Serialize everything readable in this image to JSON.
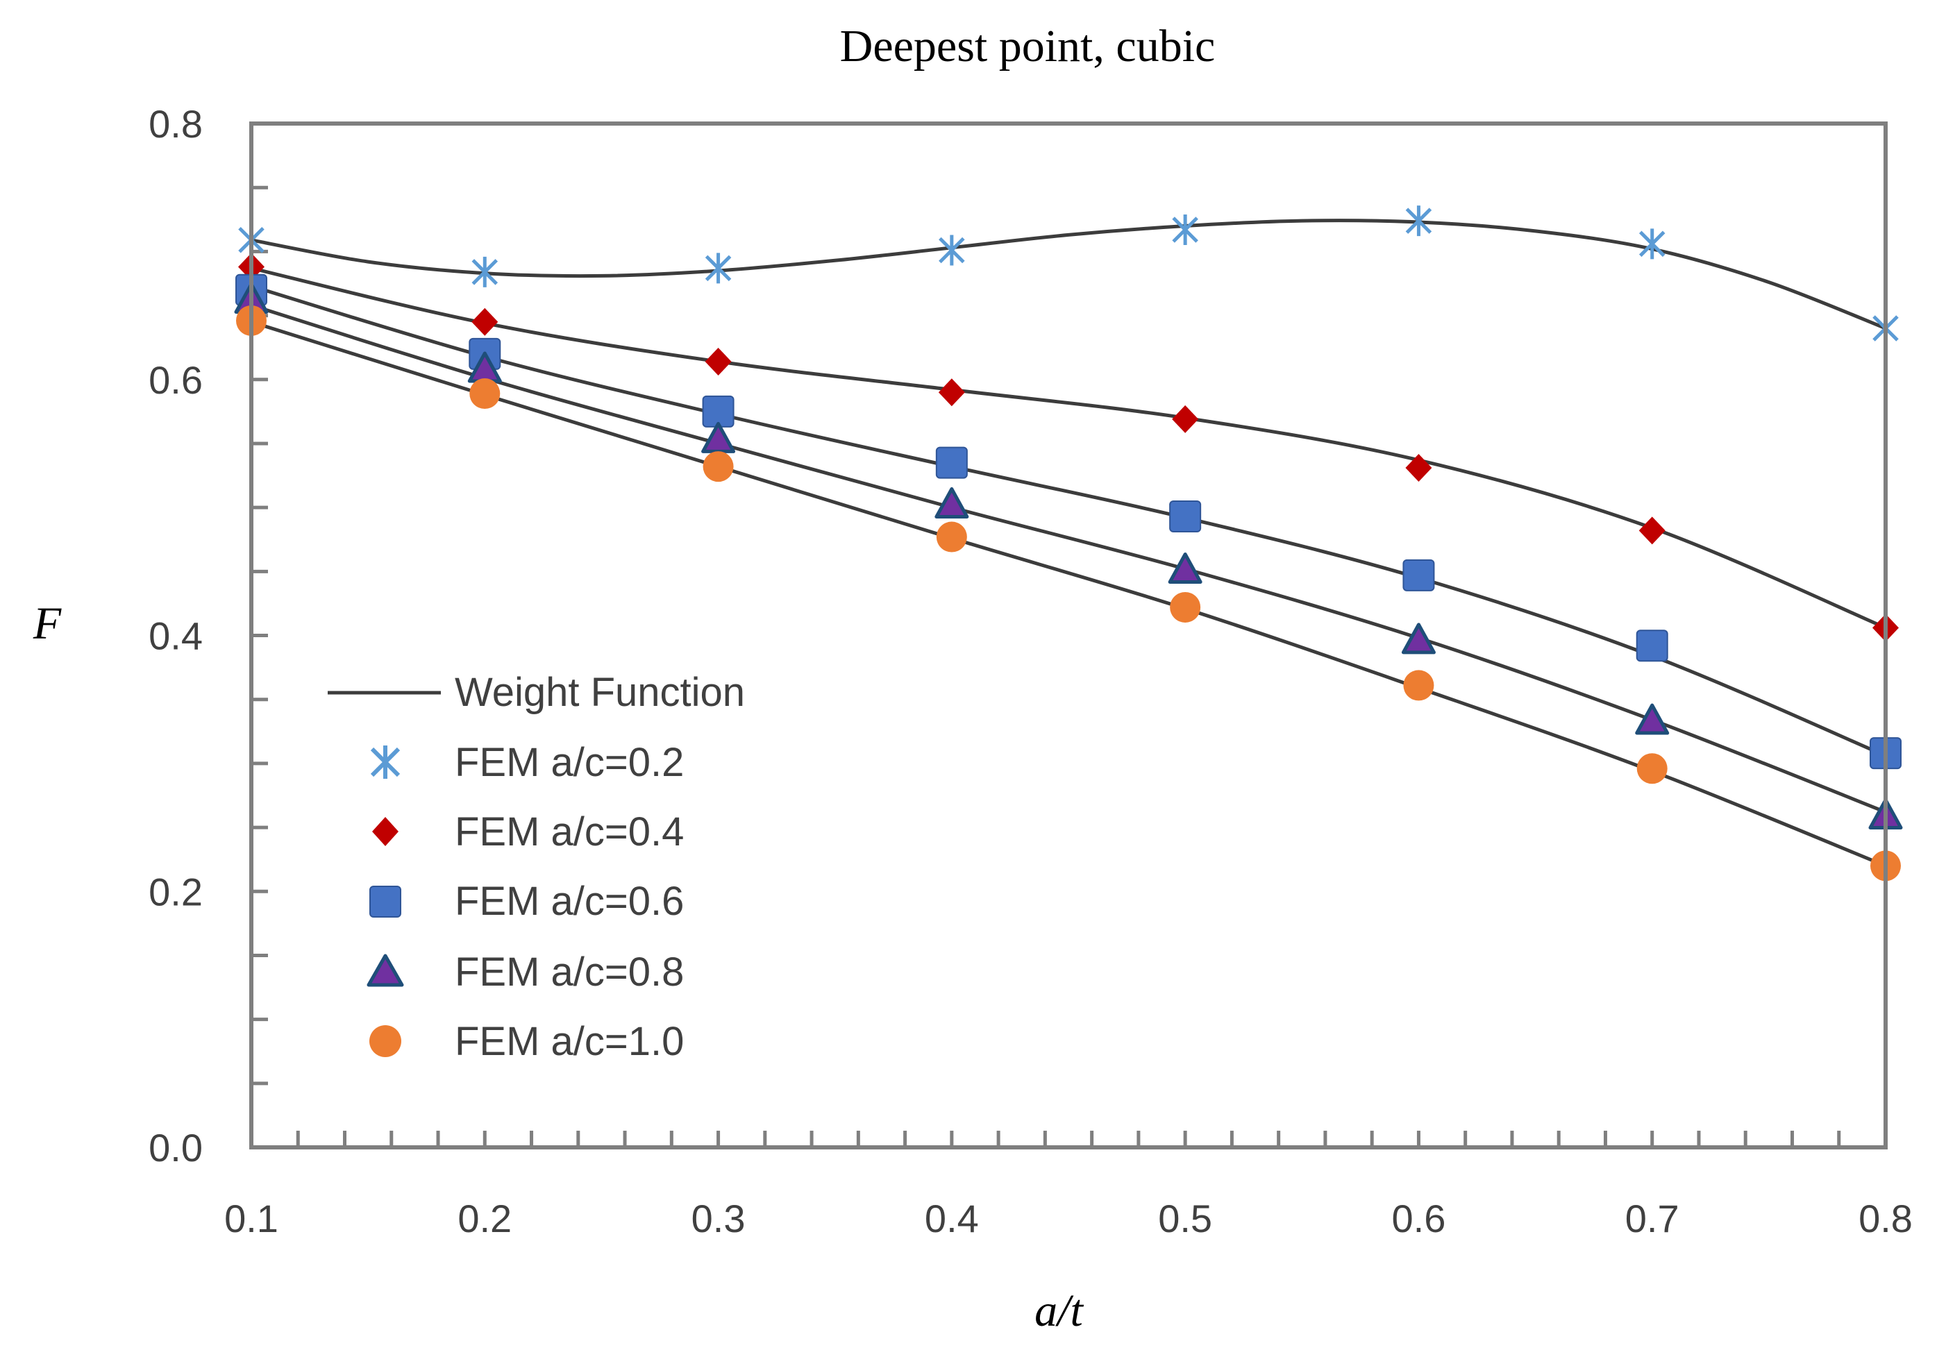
{
  "chart_data": {
    "type": "scatter",
    "title": "Deepest point, cubic",
    "xlabel": "a/t",
    "ylabel": "F",
    "xlim": [
      0.1,
      0.8
    ],
    "ylim": [
      0.0,
      0.8
    ],
    "x_ticks": [
      "0.1",
      "0.2",
      "0.3",
      "0.4",
      "0.5",
      "0.6",
      "0.7",
      "0.8"
    ],
    "y_ticks": [
      "0.0",
      "0.2",
      "0.4",
      "0.6",
      "0.8"
    ],
    "x": [
      0.1,
      0.2,
      0.3,
      0.4,
      0.5,
      0.6,
      0.7,
      0.8
    ],
    "legend_position": "lower-left",
    "lines": [
      {
        "name": "Weight Function a/c=0.2",
        "x": [
          0.1,
          0.15,
          0.2,
          0.25,
          0.3,
          0.35,
          0.4,
          0.45,
          0.5,
          0.55,
          0.6,
          0.65,
          0.7,
          0.75,
          0.8
        ],
        "y": [
          0.709,
          0.692,
          0.683,
          0.681,
          0.685,
          0.693,
          0.703,
          0.713,
          0.72,
          0.724,
          0.723,
          0.716,
          0.702,
          0.676,
          0.64
        ]
      },
      {
        "name": "Weight Function a/c=0.4",
        "x": [
          0.1,
          0.2,
          0.3,
          0.4,
          0.5,
          0.6,
          0.7,
          0.8
        ],
        "y": [
          0.687,
          0.644,
          0.614,
          0.592,
          0.57,
          0.537,
          0.484,
          0.406
        ]
      },
      {
        "name": "Weight Function a/c=0.6",
        "x": [
          0.1,
          0.2,
          0.3,
          0.4,
          0.5,
          0.6,
          0.7,
          0.8
        ],
        "y": [
          0.673,
          0.618,
          0.573,
          0.532,
          0.492,
          0.445,
          0.384,
          0.306
        ]
      },
      {
        "name": "Weight Function a/c=0.8",
        "x": [
          0.1,
          0.2,
          0.3,
          0.4,
          0.5,
          0.6,
          0.7,
          0.8
        ],
        "y": [
          0.658,
          0.601,
          0.55,
          0.5,
          0.452,
          0.398,
          0.334,
          0.262
        ]
      },
      {
        "name": "Weight Function a/c=1.0",
        "x": [
          0.1,
          0.2,
          0.3,
          0.4,
          0.5,
          0.6,
          0.7,
          0.8
        ],
        "y": [
          0.645,
          0.588,
          0.532,
          0.476,
          0.421,
          0.359,
          0.294,
          0.22
        ]
      }
    ],
    "series": [
      {
        "name": "Weight Function",
        "marker": "line",
        "color": "#3c3c3c"
      },
      {
        "name": "FEM a/c=0.2",
        "marker": "asterisk",
        "color": "#5b9bd5",
        "values": [
          0.709,
          0.684,
          0.687,
          0.701,
          0.717,
          0.724,
          0.706,
          0.64
        ]
      },
      {
        "name": "FEM a/c=0.4",
        "marker": "diamond",
        "color": "#c00000",
        "values": [
          0.688,
          0.645,
          0.614,
          0.59,
          0.569,
          0.531,
          0.482,
          0.406
        ]
      },
      {
        "name": "FEM a/c=0.6",
        "marker": "square",
        "color": "#4472c4",
        "values": [
          0.67,
          0.62,
          0.575,
          0.535,
          0.493,
          0.447,
          0.392,
          0.308
        ]
      },
      {
        "name": "FEM a/c=0.8",
        "marker": "triangle",
        "color": "#7030a0",
        "stroke": "#1f4e79",
        "values": [
          0.662,
          0.608,
          0.553,
          0.502,
          0.451,
          0.396,
          0.333,
          0.259
        ]
      },
      {
        "name": "FEM a/c=1.0",
        "marker": "circle",
        "color": "#ed7d31",
        "values": [
          0.646,
          0.589,
          0.532,
          0.477,
          0.422,
          0.361,
          0.296,
          0.22
        ]
      }
    ]
  }
}
